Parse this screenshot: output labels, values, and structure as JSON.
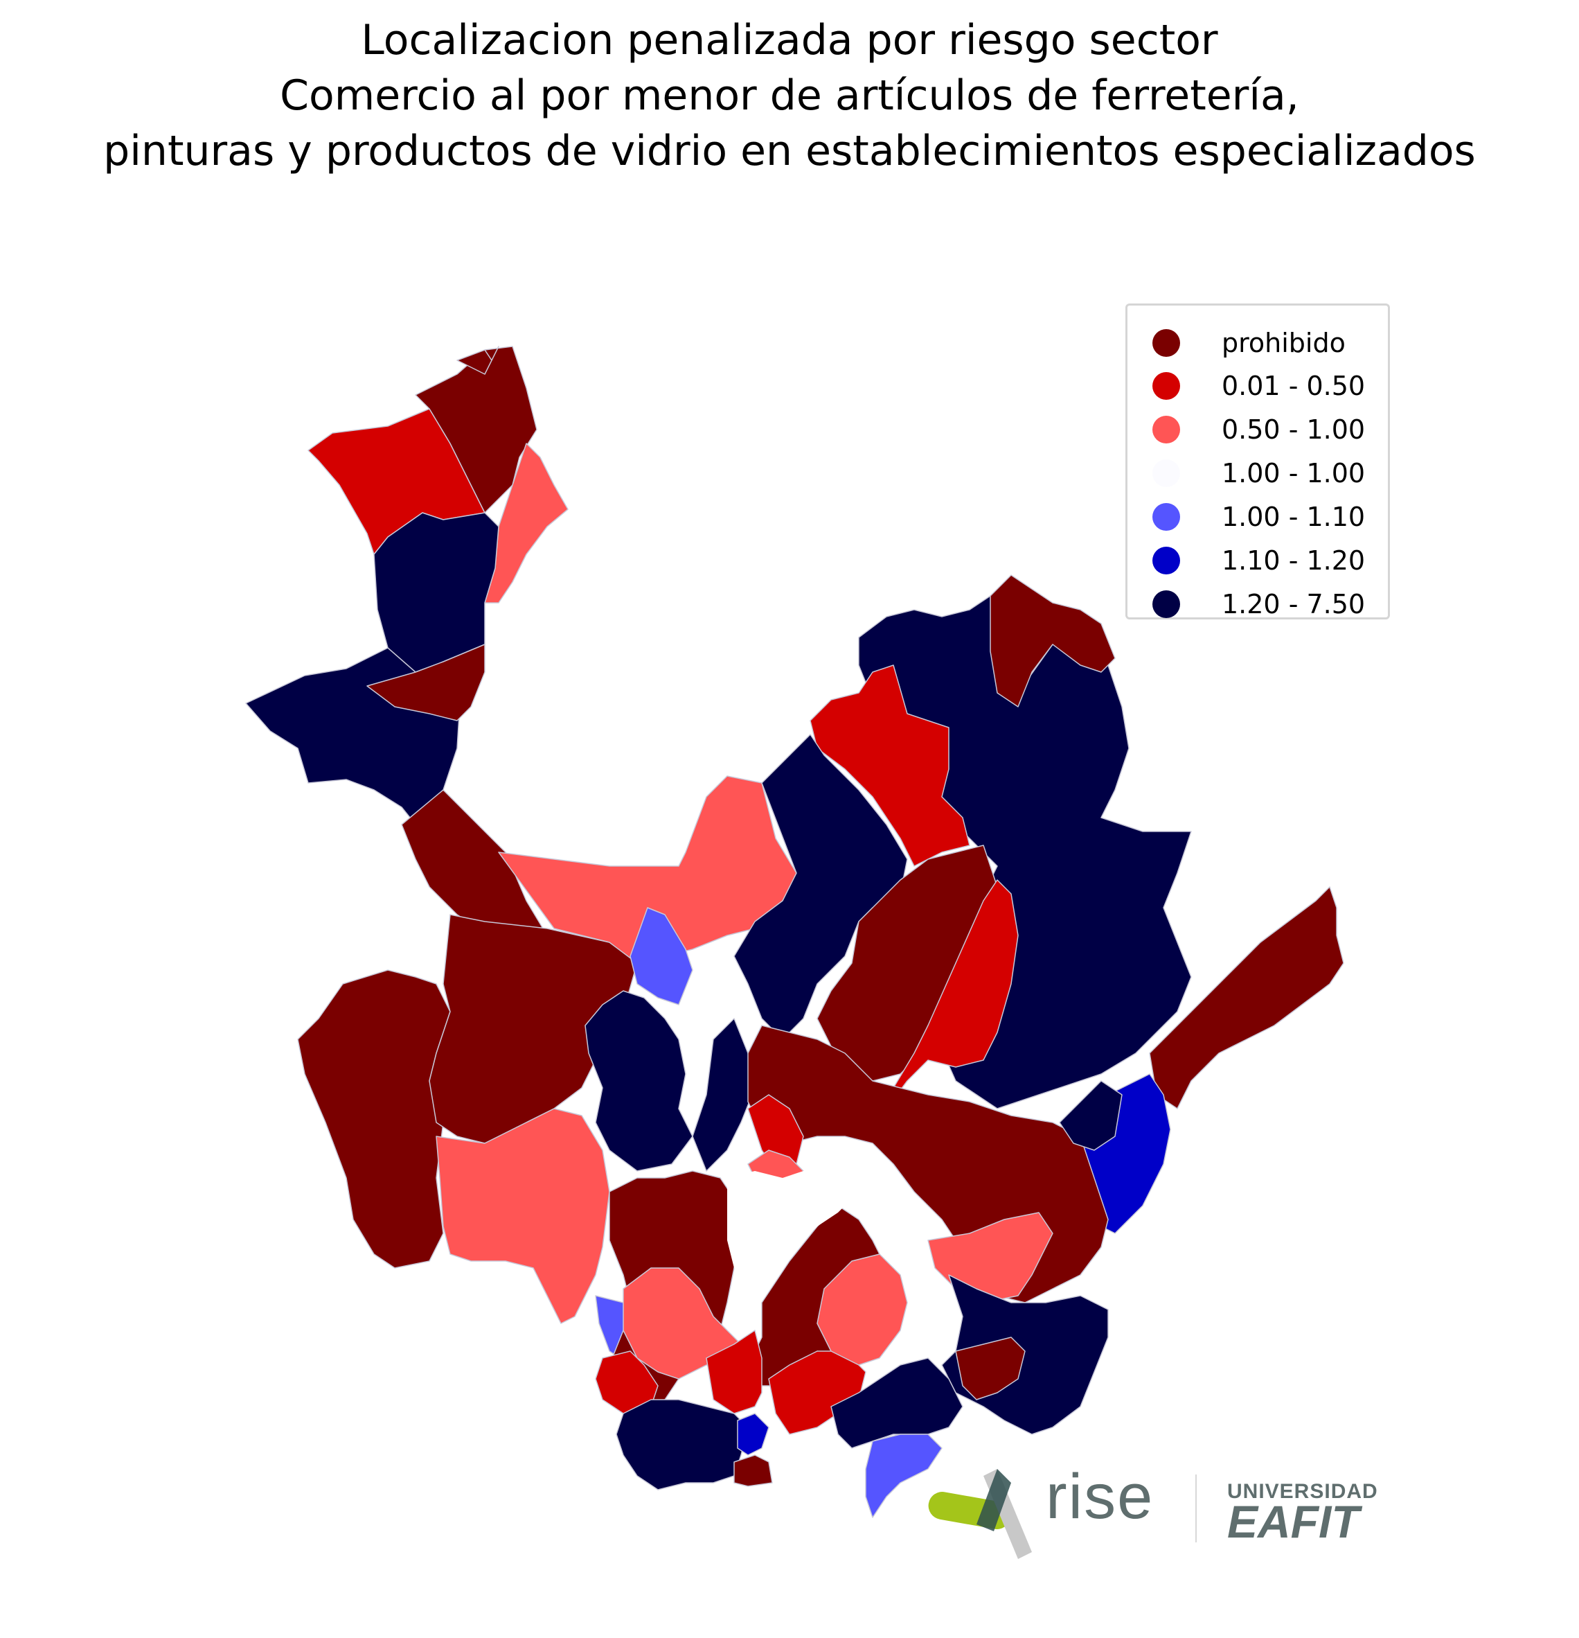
{
  "title": {
    "line1": "Localizacion penalizada por riesgo sector",
    "line2": "Comercio al por menor de artículos de ferretería,",
    "line3": "pinturas y productos de vidrio en establecimientos especializados"
  },
  "legend": [
    {
      "label": "prohibido",
      "color": "#7a0000"
    },
    {
      "label": "0.01 - 0.50",
      "color": "#d40000"
    },
    {
      "label": "0.50 - 1.00",
      "color": "#ff5555"
    },
    {
      "label": "1.00 - 1.00",
      "color": "#fbfbff"
    },
    {
      "label": "1.00 - 1.10",
      "color": "#5555ff"
    },
    {
      "label": "1.10 - 1.20",
      "color": "#0000c8"
    },
    {
      "label": "1.20 - 7.50",
      "color": "#000045"
    }
  ],
  "logos": {
    "rise": "rise",
    "university_top": "UNIVERSIDAD",
    "university_main": "EAFIT"
  }
}
